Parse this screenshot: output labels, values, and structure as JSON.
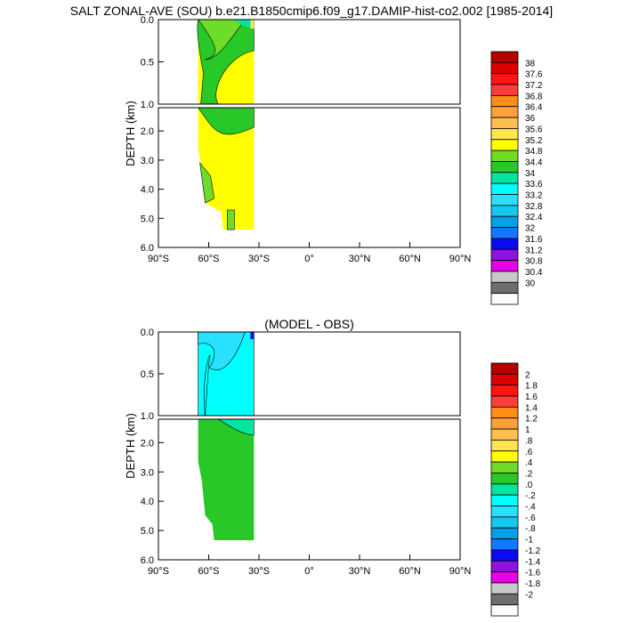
{
  "chart_data": [
    {
      "type": "heatmap",
      "title": "SALT ZONAL-AVE (SOU) b.e21.B1850cmip6.f09_g17.DAMIP-hist-co2.002 [1985-2014]",
      "ylabel": "DEPTH (km)",
      "xlabel": "",
      "x_ticks": [
        "90°S",
        "60°S",
        "30°S",
        "0°",
        "30°N",
        "60°N",
        "90°N"
      ],
      "xlim": [
        -90,
        90
      ],
      "y_ticks_upper": [
        "0.0",
        "0.5",
        "1.0"
      ],
      "y_ticks_lower": [
        "2.0",
        "3.0",
        "4.0",
        "5.0",
        "6.0"
      ],
      "ylim": [
        0,
        6
      ],
      "data_extent_lat": [
        -78,
        -33
      ],
      "colorbar_levels": [
        "38",
        "37.6",
        "37.2",
        "36.8",
        "36.4",
        "36",
        "35.6",
        "35.2",
        "34.8",
        "34.4",
        "34",
        "33.6",
        "33.2",
        "32.8",
        "32.4",
        "32",
        "31.6",
        "31.2",
        "30.8",
        "30.4",
        "30"
      ],
      "colorbar_colors": [
        "#b40000",
        "#dc0000",
        "#ff1414",
        "#ff3c3c",
        "#ff8c14",
        "#ffa03c",
        "#ffbe50",
        "#ffe650",
        "#ffff00",
        "#6edc28",
        "#28c828",
        "#00e6a0",
        "#00ffff",
        "#28e1ff",
        "#14c8f0",
        "#00a0e6",
        "#1478ff",
        "#0a0af0",
        "#8c14dc",
        "#e600e6",
        "#c8c8c8",
        "#6e6e6e",
        "#ffffff"
      ]
    },
    {
      "type": "heatmap",
      "title": "(MODEL - OBS)",
      "ylabel": "DEPTH (km)",
      "xlabel": "",
      "x_ticks": [
        "90°S",
        "60°S",
        "30°S",
        "0°",
        "30°N",
        "60°N",
        "90°N"
      ],
      "xlim": [
        -90,
        90
      ],
      "y_ticks_upper": [
        "0.0",
        "0.5",
        "1.0"
      ],
      "y_ticks_lower": [
        "2.0",
        "3.0",
        "4.0",
        "5.0",
        "6.0"
      ],
      "ylim": [
        0,
        6
      ],
      "data_extent_lat": [
        -78,
        -33
      ],
      "colorbar_levels": [
        "2",
        "1.8",
        "1.6",
        "1.4",
        "1.2",
        "1",
        ".8",
        ".6",
        ".4",
        ".2",
        ".0",
        "-.2",
        "-.4",
        "-.6",
        "-.8",
        "-1",
        "-1.2",
        "-1.4",
        "-1.6",
        "-1.8",
        "-2"
      ],
      "colorbar_colors": [
        "#b40000",
        "#dc0000",
        "#ff1414",
        "#ff3c3c",
        "#ff8c14",
        "#ffa03c",
        "#ffbe50",
        "#ffe650",
        "#ffff00",
        "#6edc28",
        "#28c828",
        "#00e6a0",
        "#00ffff",
        "#28e1ff",
        "#14c8f0",
        "#00a0e6",
        "#1478ff",
        "#0a0af0",
        "#8c14dc",
        "#e600e6",
        "#c8c8c8",
        "#6e6e6e",
        "#ffffff"
      ]
    }
  ]
}
